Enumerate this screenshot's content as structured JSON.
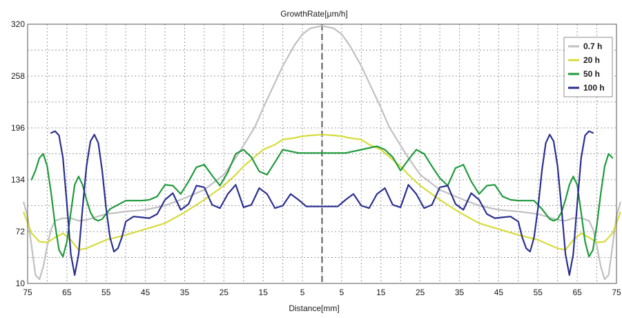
{
  "chart_data": {
    "type": "line",
    "title": "GrowthRate[μm/h]",
    "xlabel": "Distance[mm]",
    "ylabel": "",
    "xlim": [
      -75,
      75
    ],
    "ylim": [
      10,
      320
    ],
    "x_tick_values": [
      -75,
      -65,
      -55,
      -45,
      -35,
      -25,
      -15,
      -5,
      5,
      15,
      25,
      35,
      45,
      55,
      65,
      75
    ],
    "x_tick_labels": [
      "75",
      "65",
      "55",
      "45",
      "35",
      "25",
      "15",
      "5",
      "5",
      "15",
      "25",
      "35",
      "45",
      "55",
      "65",
      "75"
    ],
    "y_tick_values": [
      10,
      72,
      134,
      196,
      258,
      320
    ],
    "y_tick_labels": [
      "10",
      "72",
      "134",
      "196",
      "258",
      "320"
    ],
    "x_minor_gridlines": [
      -70,
      -60,
      -50,
      -40,
      -30,
      -20,
      -10,
      0,
      10,
      20,
      30,
      40,
      50,
      60,
      70
    ],
    "y_minor_gridlines": [
      41,
      103,
      165,
      227,
      289
    ],
    "grid": true,
    "center_line_x": 0,
    "legend_position": "top-right",
    "series": [
      {
        "name": "0.7 h",
        "color": "#c0c0c0",
        "x": [
          -76,
          -75,
          -74,
          -73,
          -72,
          -71,
          -70,
          -69,
          -68,
          -66,
          -64,
          -62,
          -60,
          -55,
          -50,
          -45,
          -40,
          -35,
          -30,
          -25,
          -22,
          -20,
          -17,
          -15,
          -12,
          -10,
          -7,
          -5,
          -3,
          0,
          3,
          5,
          7,
          10,
          12,
          15,
          17,
          20,
          22,
          25,
          30,
          35,
          40,
          45,
          50,
          55,
          60,
          62,
          64,
          66,
          68,
          69,
          70,
          71,
          72,
          73,
          74,
          75,
          76
        ],
        "y": [
          107,
          90,
          55,
          20,
          15,
          30,
          55,
          75,
          85,
          88,
          88,
          85,
          86,
          93,
          96,
          98,
          103,
          112,
          122,
          140,
          160,
          175,
          198,
          220,
          250,
          270,
          295,
          308,
          315,
          318,
          315,
          308,
          295,
          270,
          250,
          220,
          198,
          175,
          160,
          140,
          122,
          112,
          103,
          98,
          96,
          93,
          86,
          85,
          88,
          88,
          85,
          75,
          55,
          30,
          15,
          20,
          55,
          90,
          107
        ]
      },
      {
        "name": "20 h",
        "color": "#d6dc3a",
        "x": [
          -76,
          -74,
          -72,
          -70,
          -68,
          -66,
          -64,
          -62,
          -60,
          -57,
          -55,
          -50,
          -45,
          -40,
          -35,
          -30,
          -25,
          -22,
          -20,
          -17,
          -15,
          -12,
          -10,
          -7,
          -5,
          -3,
          0,
          3,
          5,
          7,
          10,
          12,
          15,
          17,
          20,
          22,
          25,
          30,
          35,
          40,
          45,
          50,
          55,
          57,
          60,
          62,
          64,
          66,
          68,
          70,
          72,
          74,
          76
        ],
        "y": [
          95,
          70,
          60,
          59,
          65,
          70,
          62,
          50,
          52,
          58,
          62,
          68,
          75,
          82,
          95,
          110,
          127,
          140,
          150,
          162,
          170,
          176,
          182,
          184,
          186,
          187,
          188,
          187,
          186,
          184,
          182,
          176,
          170,
          162,
          150,
          140,
          127,
          110,
          95,
          82,
          75,
          68,
          62,
          58,
          52,
          50,
          62,
          70,
          65,
          59,
          60,
          70,
          95
        ]
      },
      {
        "name": "50 h",
        "color": "#1f9a3c",
        "x": [
          -74,
          -73,
          -72,
          -71,
          -70,
          -69,
          -68,
          -67,
          -66,
          -65,
          -64,
          -63,
          -62,
          -61,
          -60,
          -59,
          -58,
          -57,
          -56,
          -55,
          -54,
          -52,
          -50,
          -48,
          -46,
          -44,
          -42,
          -40,
          -38,
          -36,
          -34,
          -32,
          -30,
          -28,
          -26,
          -24,
          -22,
          -20,
          -18,
          -16,
          -14,
          -12,
          -10,
          -8,
          -6,
          -4,
          -2,
          0,
          2,
          4,
          6,
          8,
          10,
          12,
          14,
          16,
          18,
          20,
          22,
          24,
          26,
          28,
          30,
          32,
          34,
          36,
          38,
          40,
          42,
          44,
          46,
          48,
          50,
          52,
          54,
          55,
          56,
          57,
          58,
          59,
          60,
          61,
          62,
          63,
          64,
          65,
          66,
          67,
          68,
          69,
          70,
          71,
          72,
          73,
          74
        ],
        "y": [
          134,
          145,
          160,
          165,
          150,
          118,
          80,
          50,
          42,
          60,
          95,
          128,
          138,
          128,
          110,
          95,
          87,
          85,
          87,
          93,
          99,
          104,
          109,
          109,
          109,
          110,
          114,
          128,
          127,
          117,
          132,
          149,
          152,
          139,
          127,
          143,
          165,
          170,
          161,
          144,
          140,
          155,
          170,
          168,
          166,
          166,
          166,
          166,
          166,
          166,
          166,
          168,
          170,
          172,
          174,
          170,
          161,
          145,
          158,
          170,
          165,
          150,
          136,
          127,
          148,
          152,
          132,
          117,
          127,
          128,
          114,
          110,
          109,
          109,
          109,
          104,
          99,
          93,
          87,
          85,
          87,
          95,
          110,
          128,
          138,
          128,
          95,
          60,
          42,
          50,
          80,
          118,
          150,
          165,
          160
        ],
        "_note_unused": null
      },
      {
        "name": "100 h",
        "color": "#2a2f8f",
        "x": [
          -69,
          -68,
          -67,
          -66,
          -65,
          -64,
          -63,
          -62,
          -61,
          -60,
          -59,
          -58,
          -57,
          -56,
          -55,
          -54,
          -53,
          -52,
          -51,
          -50,
          -48,
          -46,
          -44,
          -42,
          -40,
          -38,
          -36,
          -34,
          -32,
          -30,
          -28,
          -26,
          -24,
          -22,
          -20,
          -18,
          -16,
          -14,
          -12,
          -10,
          -8,
          -6,
          -4,
          -2,
          0,
          2,
          4,
          6,
          8,
          10,
          12,
          14,
          16,
          18,
          20,
          22,
          24,
          26,
          28,
          30,
          32,
          34,
          36,
          38,
          40,
          42,
          44,
          46,
          48,
          50,
          51,
          52,
          53,
          54,
          55,
          56,
          57,
          58,
          59,
          60,
          61,
          62,
          63,
          64,
          65,
          66,
          67,
          68,
          69
        ],
        "y": [
          190,
          192,
          187,
          160,
          105,
          45,
          20,
          45,
          100,
          150,
          180,
          188,
          178,
          145,
          100,
          65,
          48,
          52,
          65,
          84,
          90,
          89,
          88,
          93,
          110,
          118,
          98,
          105,
          127,
          125,
          104,
          100,
          117,
          128,
          101,
          104,
          124,
          117,
          100,
          103,
          117,
          110,
          102,
          102,
          102,
          102,
          102,
          110,
          117,
          103,
          100,
          117,
          124,
          104,
          101,
          128,
          117,
          100,
          104,
          125,
          127,
          105,
          98,
          118,
          110,
          93,
          88,
          89,
          90,
          84,
          65,
          52,
          48,
          65,
          100,
          145,
          178,
          188,
          180,
          150,
          100,
          45,
          20,
          45,
          105,
          160,
          187,
          192,
          190
        ]
      }
    ]
  }
}
